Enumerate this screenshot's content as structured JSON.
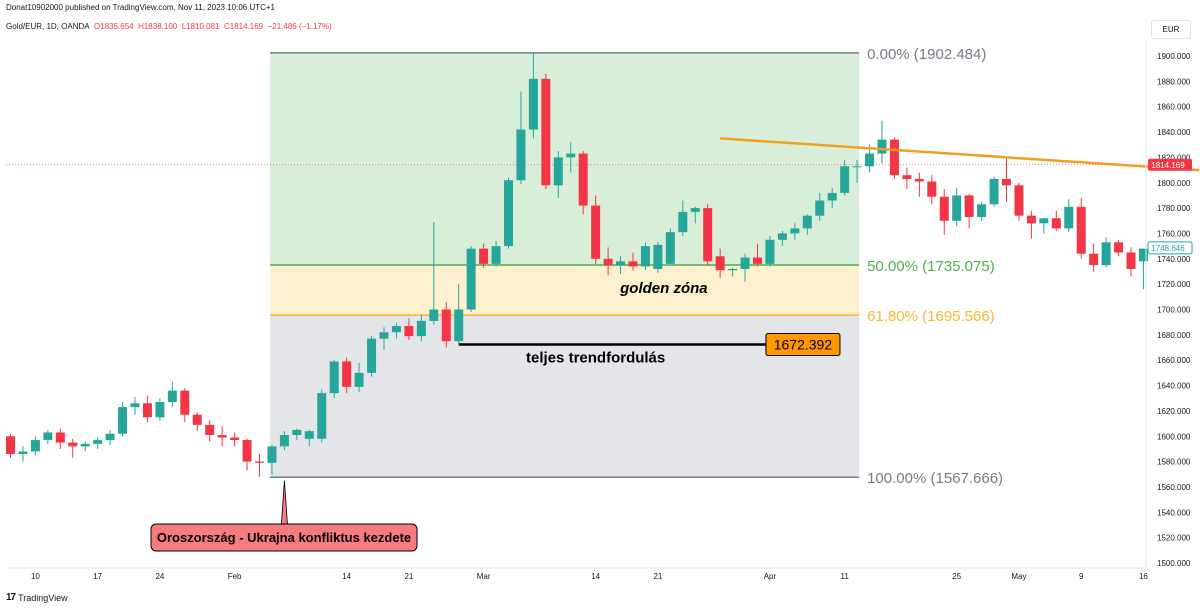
{
  "header": {
    "caption": "Donat10902000 published on TradingView.com, Nov 11, 2023 10:06 UTC+1",
    "symbol": "Gold/EUR, 1D, OANDA",
    "ohlc_open": "O1835.654",
    "ohlc_high": "H1838.100",
    "ohlc_low": "L1810.081",
    "ohlc_close": "C1814.169",
    "change": "−21.486 (−1.17%)",
    "currency": "EUR"
  },
  "footer": {
    "brand": "TradingView",
    "logo_text": "17"
  },
  "colors": {
    "up": "#26a69a",
    "down": "#f23645",
    "zone_green": "#d9eed9",
    "zone_yellow": "#fdf0cf",
    "zone_grey": "#e4e5e8",
    "fib_0": "#787b86",
    "fib_50": "#4caf50",
    "fib_618": "#f5b82e",
    "fib_100": "#787b86",
    "trendline": "#f0a020",
    "price_tag": "#f23645",
    "last_tag": "#26a69a",
    "callout": "#f77c80",
    "level_box": "#ff9800"
  },
  "chart_data": {
    "type": "candlestick",
    "y_axis": {
      "ylim": [
        1485,
        1935
      ],
      "ticks": [
        1500,
        1520,
        1540,
        1560,
        1580,
        1600,
        1620,
        1640,
        1660,
        1680,
        1700,
        1720,
        1740,
        1760,
        1780,
        1800,
        1820,
        1840,
        1860,
        1880,
        1900
      ]
    },
    "x_axis": {
      "tick_labels": [
        {
          "label": "10",
          "index": 2
        },
        {
          "label": "17",
          "index": 7
        },
        {
          "label": "24",
          "index": 12
        },
        {
          "label": "Feb",
          "index": 18
        },
        {
          "label": "14",
          "index": 27
        },
        {
          "label": "21",
          "index": 32
        },
        {
          "label": "Mar",
          "index": 38
        },
        {
          "label": "14",
          "index": 47
        },
        {
          "label": "21",
          "index": 52
        },
        {
          "label": "Apr",
          "index": 61
        },
        {
          "label": "11",
          "index": 67
        },
        {
          "label": "25",
          "index": 76
        },
        {
          "label": "May",
          "index": 81
        },
        {
          "label": "9",
          "index": 86
        },
        {
          "label": "16",
          "index": 91
        }
      ]
    },
    "candles": [
      {
        "o": 1600,
        "h": 1602,
        "l": 1583,
        "c": 1586
      },
      {
        "o": 1586,
        "h": 1592,
        "l": 1580,
        "c": 1588
      },
      {
        "o": 1588,
        "h": 1600,
        "l": 1585,
        "c": 1597
      },
      {
        "o": 1597,
        "h": 1605,
        "l": 1594,
        "c": 1603
      },
      {
        "o": 1603,
        "h": 1606,
        "l": 1590,
        "c": 1595
      },
      {
        "o": 1595,
        "h": 1598,
        "l": 1583,
        "c": 1592
      },
      {
        "o": 1592,
        "h": 1596,
        "l": 1588,
        "c": 1594
      },
      {
        "o": 1594,
        "h": 1599,
        "l": 1590,
        "c": 1597
      },
      {
        "o": 1597,
        "h": 1605,
        "l": 1593,
        "c": 1602
      },
      {
        "o": 1602,
        "h": 1627,
        "l": 1600,
        "c": 1623
      },
      {
        "o": 1623,
        "h": 1631,
        "l": 1617,
        "c": 1626
      },
      {
        "o": 1626,
        "h": 1632,
        "l": 1611,
        "c": 1615
      },
      {
        "o": 1615,
        "h": 1630,
        "l": 1612,
        "c": 1627
      },
      {
        "o": 1627,
        "h": 1643,
        "l": 1623,
        "c": 1636
      },
      {
        "o": 1636,
        "h": 1638,
        "l": 1611,
        "c": 1617
      },
      {
        "o": 1617,
        "h": 1619,
        "l": 1604,
        "c": 1609
      },
      {
        "o": 1609,
        "h": 1613,
        "l": 1596,
        "c": 1601
      },
      {
        "o": 1601,
        "h": 1608,
        "l": 1592,
        "c": 1599
      },
      {
        "o": 1599,
        "h": 1603,
        "l": 1592,
        "c": 1597
      },
      {
        "o": 1597,
        "h": 1598,
        "l": 1573,
        "c": 1580
      },
      {
        "o": 1580,
        "h": 1586,
        "l": 1568,
        "c": 1579
      },
      {
        "o": 1579,
        "h": 1593,
        "l": 1570,
        "c": 1592
      },
      {
        "o": 1592,
        "h": 1604,
        "l": 1589,
        "c": 1601
      },
      {
        "o": 1601,
        "h": 1606,
        "l": 1597,
        "c": 1605
      },
      {
        "o": 1598,
        "h": 1605,
        "l": 1592,
        "c": 1604
      },
      {
        "o": 1598,
        "h": 1637,
        "l": 1595,
        "c": 1634
      },
      {
        "o": 1634,
        "h": 1660,
        "l": 1630,
        "c": 1659
      },
      {
        "o": 1659,
        "h": 1662,
        "l": 1634,
        "c": 1639
      },
      {
        "o": 1639,
        "h": 1658,
        "l": 1635,
        "c": 1650
      },
      {
        "o": 1650,
        "h": 1679,
        "l": 1647,
        "c": 1677
      },
      {
        "o": 1677,
        "h": 1686,
        "l": 1668,
        "c": 1682
      },
      {
        "o": 1682,
        "h": 1689,
        "l": 1677,
        "c": 1687
      },
      {
        "o": 1687,
        "h": 1693,
        "l": 1676,
        "c": 1679
      },
      {
        "o": 1679,
        "h": 1696,
        "l": 1675,
        "c": 1691
      },
      {
        "o": 1691,
        "h": 1769,
        "l": 1688,
        "c": 1700
      },
      {
        "o": 1700,
        "h": 1706,
        "l": 1670,
        "c": 1675
      },
      {
        "o": 1675,
        "h": 1720,
        "l": 1673,
        "c": 1700
      },
      {
        "o": 1700,
        "h": 1750,
        "l": 1698,
        "c": 1748
      },
      {
        "o": 1748,
        "h": 1752,
        "l": 1733,
        "c": 1736
      },
      {
        "o": 1736,
        "h": 1754,
        "l": 1734,
        "c": 1750
      },
      {
        "o": 1750,
        "h": 1804,
        "l": 1748,
        "c": 1802
      },
      {
        "o": 1802,
        "h": 1872,
        "l": 1799,
        "c": 1842
      },
      {
        "o": 1842,
        "h": 1902,
        "l": 1835,
        "c": 1882
      },
      {
        "o": 1882,
        "h": 1886,
        "l": 1795,
        "c": 1798
      },
      {
        "o": 1798,
        "h": 1825,
        "l": 1788,
        "c": 1820
      },
      {
        "o": 1820,
        "h": 1832,
        "l": 1808,
        "c": 1823
      },
      {
        "o": 1823,
        "h": 1825,
        "l": 1775,
        "c": 1782
      },
      {
        "o": 1782,
        "h": 1790,
        "l": 1736,
        "c": 1740
      },
      {
        "o": 1740,
        "h": 1749,
        "l": 1727,
        "c": 1735
      },
      {
        "o": 1735,
        "h": 1742,
        "l": 1728,
        "c": 1738
      },
      {
        "o": 1738,
        "h": 1745,
        "l": 1731,
        "c": 1734
      },
      {
        "o": 1734,
        "h": 1753,
        "l": 1731,
        "c": 1750
      },
      {
        "o": 1732,
        "h": 1753,
        "l": 1729,
        "c": 1751
      },
      {
        "o": 1736,
        "h": 1764,
        "l": 1735,
        "c": 1761
      },
      {
        "o": 1761,
        "h": 1786,
        "l": 1758,
        "c": 1777
      },
      {
        "o": 1777,
        "h": 1781,
        "l": 1768,
        "c": 1780
      },
      {
        "o": 1780,
        "h": 1783,
        "l": 1735,
        "c": 1738
      },
      {
        "o": 1742,
        "h": 1748,
        "l": 1725,
        "c": 1731
      },
      {
        "o": 1731,
        "h": 1733,
        "l": 1726,
        "c": 1732
      },
      {
        "o": 1732,
        "h": 1744,
        "l": 1722,
        "c": 1741
      },
      {
        "o": 1741,
        "h": 1752,
        "l": 1734,
        "c": 1736
      },
      {
        "o": 1736,
        "h": 1758,
        "l": 1734,
        "c": 1755
      },
      {
        "o": 1755,
        "h": 1762,
        "l": 1750,
        "c": 1760
      },
      {
        "o": 1760,
        "h": 1768,
        "l": 1755,
        "c": 1764
      },
      {
        "o": 1764,
        "h": 1775,
        "l": 1759,
        "c": 1774
      },
      {
        "o": 1774,
        "h": 1792,
        "l": 1770,
        "c": 1786
      },
      {
        "o": 1786,
        "h": 1796,
        "l": 1780,
        "c": 1792
      },
      {
        "o": 1792,
        "h": 1818,
        "l": 1790,
        "c": 1813
      },
      {
        "o": 1813,
        "h": 1818,
        "l": 1800,
        "c": 1813
      },
      {
        "o": 1813,
        "h": 1830,
        "l": 1808,
        "c": 1823
      },
      {
        "o": 1823,
        "h": 1849,
        "l": 1815,
        "c": 1834
      },
      {
        "o": 1834,
        "h": 1836,
        "l": 1803,
        "c": 1806
      },
      {
        "o": 1806,
        "h": 1812,
        "l": 1795,
        "c": 1803
      },
      {
        "o": 1803,
        "h": 1808,
        "l": 1789,
        "c": 1801
      },
      {
        "o": 1801,
        "h": 1806,
        "l": 1783,
        "c": 1789
      },
      {
        "o": 1789,
        "h": 1795,
        "l": 1759,
        "c": 1770
      },
      {
        "o": 1770,
        "h": 1796,
        "l": 1766,
        "c": 1790
      },
      {
        "o": 1790,
        "h": 1791,
        "l": 1764,
        "c": 1773
      },
      {
        "o": 1773,
        "h": 1785,
        "l": 1770,
        "c": 1783
      },
      {
        "o": 1783,
        "h": 1805,
        "l": 1781,
        "c": 1803
      },
      {
        "o": 1803,
        "h": 1819,
        "l": 1785,
        "c": 1798
      },
      {
        "o": 1798,
        "h": 1800,
        "l": 1770,
        "c": 1774
      },
      {
        "o": 1774,
        "h": 1778,
        "l": 1756,
        "c": 1768
      },
      {
        "o": 1768,
        "h": 1772,
        "l": 1760,
        "c": 1772
      },
      {
        "o": 1772,
        "h": 1778,
        "l": 1762,
        "c": 1764
      },
      {
        "o": 1764,
        "h": 1787,
        "l": 1761,
        "c": 1781
      },
      {
        "o": 1781,
        "h": 1788,
        "l": 1740,
        "c": 1744
      },
      {
        "o": 1744,
        "h": 1752,
        "l": 1730,
        "c": 1735
      },
      {
        "o": 1735,
        "h": 1757,
        "l": 1733,
        "c": 1753
      },
      {
        "o": 1753,
        "h": 1755,
        "l": 1742,
        "c": 1745
      },
      {
        "o": 1745,
        "h": 1749,
        "l": 1726,
        "c": 1732
      },
      {
        "o": 1738,
        "h": 1748,
        "l": 1716,
        "c": 1748
      }
    ],
    "fib_retracement": {
      "levels": [
        {
          "label": "0.00% (1902.484)",
          "price": 1902.484,
          "color_key": "fib_0"
        },
        {
          "label": "50.00% (1735.075)",
          "price": 1735.075,
          "color_key": "fib_50"
        },
        {
          "label": "61.80% (1695.566)",
          "price": 1695.566,
          "color_key": "fib_618"
        },
        {
          "label": "100.00% (1567.666)",
          "price": 1567.666,
          "color_key": "fib_100"
        }
      ],
      "start_index": 21,
      "end_index": 68
    },
    "trendline": {
      "start": {
        "index": 57,
        "price": 1835
      },
      "end": {
        "index": 95,
        "price": 1810
      }
    },
    "horizontal_level": {
      "value_label": "1672.392",
      "price": 1672.392,
      "start_index": 36,
      "end_index": 61
    },
    "annotations": [
      {
        "text": "golden zóna",
        "index": 52,
        "price": 1713
      },
      {
        "text": "teljes trendfordulás",
        "index": 47,
        "price": 1658
      }
    ],
    "callout": {
      "text": "Oroszország - Ukrajna konfliktus kezdete",
      "anchor_index": 22,
      "anchor_price": 1565
    },
    "current_price": {
      "label": "1814.169",
      "price": 1814.169
    },
    "last_price": {
      "label": "1748.646",
      "price": 1748.646
    }
  }
}
